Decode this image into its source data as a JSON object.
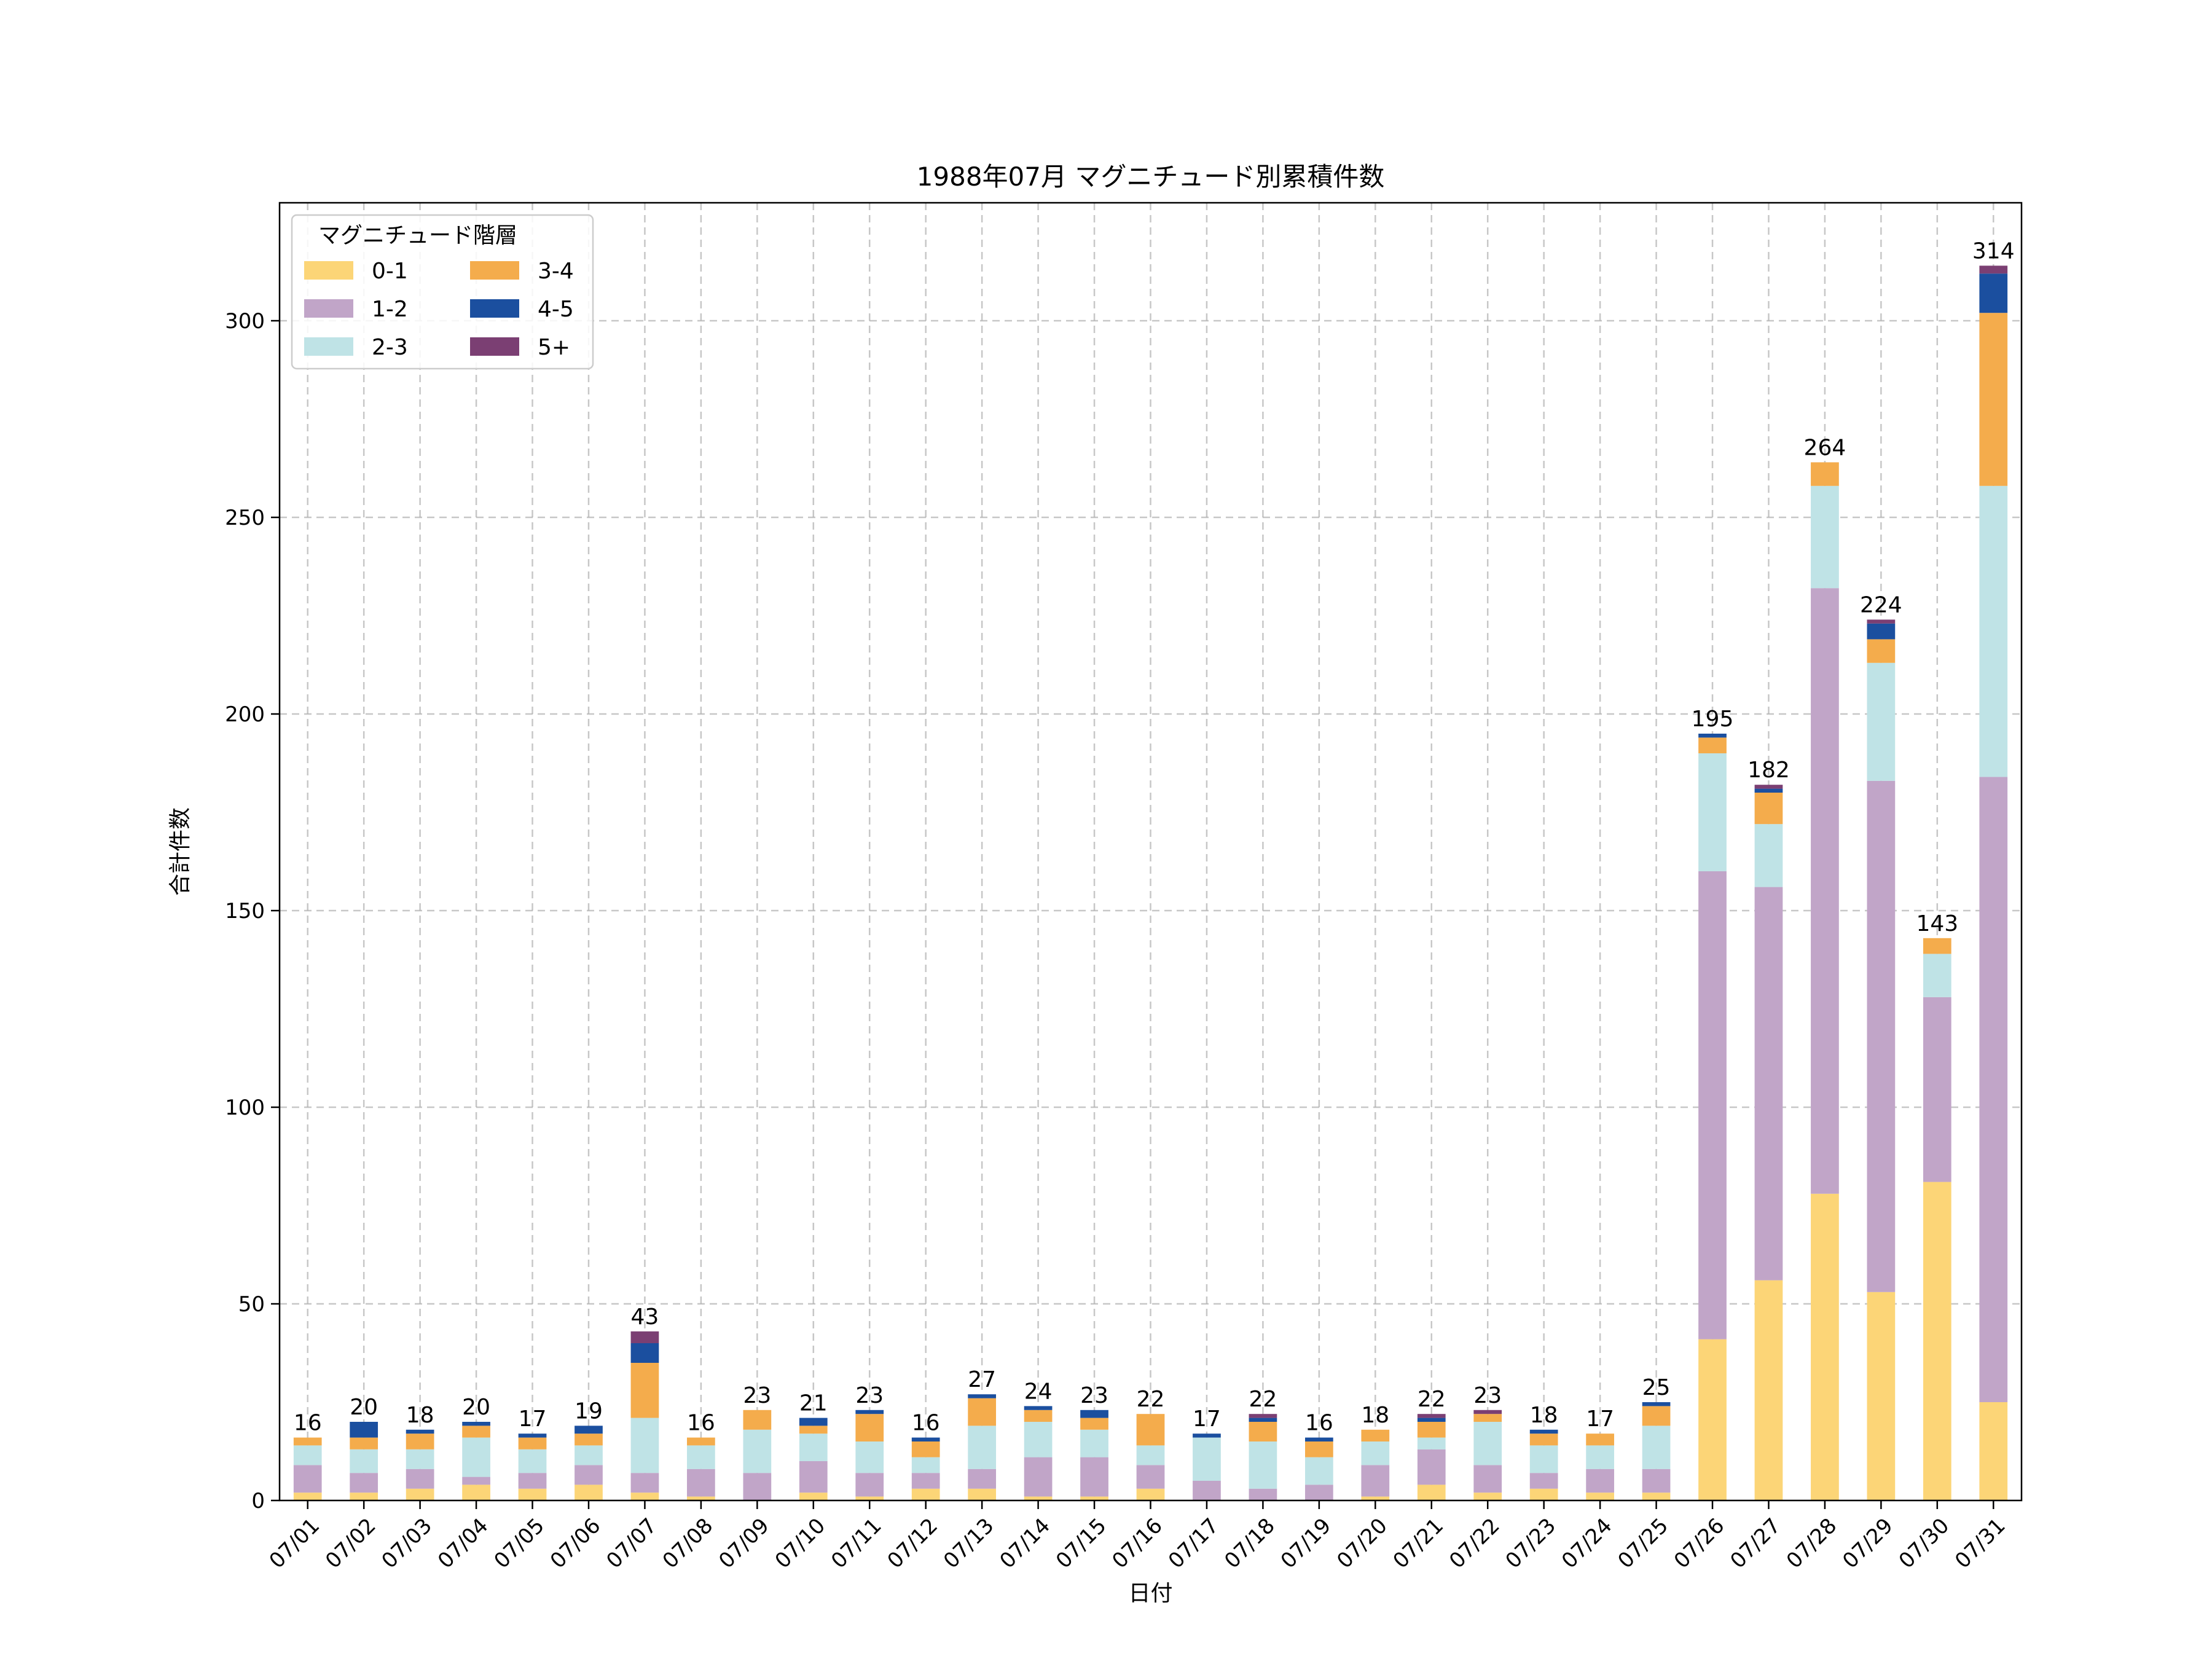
{
  "chart_data": {
    "type": "bar",
    "stacked": true,
    "title": "1988年07月 マグニチュード別累積件数",
    "xlabel": "日付",
    "ylabel": "合計件数",
    "ylim": [
      0,
      330
    ],
    "yticks": [
      0,
      50,
      100,
      150,
      200,
      250,
      300
    ],
    "grid": true,
    "legend": {
      "title": "マグニチュード階層",
      "placement": "top-left",
      "columns": 2
    },
    "categories": [
      "07/01",
      "07/02",
      "07/03",
      "07/04",
      "07/05",
      "07/06",
      "07/07",
      "07/08",
      "07/09",
      "07/10",
      "07/11",
      "07/12",
      "07/13",
      "07/14",
      "07/15",
      "07/16",
      "07/17",
      "07/18",
      "07/19",
      "07/20",
      "07/21",
      "07/22",
      "07/23",
      "07/24",
      "07/25",
      "07/26",
      "07/27",
      "07/28",
      "07/29",
      "07/30",
      "07/31"
    ],
    "series": [
      {
        "name": "0-1",
        "color": "#fcd577",
        "values": [
          2,
          2,
          3,
          4,
          3,
          4,
          2,
          1,
          0,
          2,
          1,
          3,
          3,
          1,
          1,
          3,
          0,
          0,
          0,
          1,
          4,
          2,
          3,
          2,
          2,
          41,
          56,
          78,
          53,
          81,
          25
        ]
      },
      {
        "name": "1-2",
        "color": "#c1a5c8",
        "values": [
          7,
          5,
          5,
          2,
          4,
          5,
          5,
          7,
          7,
          8,
          6,
          4,
          5,
          10,
          10,
          6,
          5,
          3,
          4,
          8,
          9,
          7,
          4,
          6,
          6,
          119,
          100,
          154,
          130,
          47,
          159
        ]
      },
      {
        "name": "2-3",
        "color": "#bfe3e6",
        "values": [
          5,
          6,
          5,
          10,
          6,
          5,
          14,
          6,
          11,
          7,
          8,
          4,
          11,
          9,
          7,
          5,
          11,
          12,
          7,
          6,
          3,
          11,
          7,
          6,
          11,
          30,
          16,
          26,
          30,
          11,
          74
        ]
      },
      {
        "name": "3-4",
        "color": "#f4ac4c",
        "values": [
          2,
          3,
          4,
          3,
          3,
          3,
          14,
          2,
          5,
          2,
          7,
          4,
          7,
          3,
          3,
          8,
          0,
          5,
          4,
          3,
          4,
          2,
          3,
          3,
          5,
          4,
          8,
          6,
          6,
          4,
          44
        ]
      },
      {
        "name": "4-5",
        "color": "#1b4f9f",
        "values": [
          0,
          4,
          1,
          1,
          1,
          2,
          5,
          0,
          0,
          2,
          1,
          1,
          1,
          1,
          2,
          0,
          1,
          1,
          1,
          0,
          1,
          0,
          1,
          0,
          1,
          1,
          1,
          0,
          4,
          0,
          10
        ]
      },
      {
        "name": "5+",
        "color": "#7b3f73",
        "values": [
          0,
          0,
          0,
          0,
          0,
          0,
          3,
          0,
          0,
          0,
          0,
          0,
          0,
          0,
          0,
          0,
          0,
          1,
          0,
          0,
          1,
          1,
          0,
          0,
          0,
          0,
          1,
          0,
          1,
          0,
          2
        ]
      }
    ],
    "totals": [
      16,
      20,
      18,
      20,
      17,
      19,
      43,
      16,
      23,
      21,
      23,
      16,
      27,
      24,
      23,
      22,
      17,
      22,
      16,
      18,
      22,
      23,
      18,
      17,
      25,
      195,
      182,
      264,
      224,
      143,
      314
    ]
  }
}
